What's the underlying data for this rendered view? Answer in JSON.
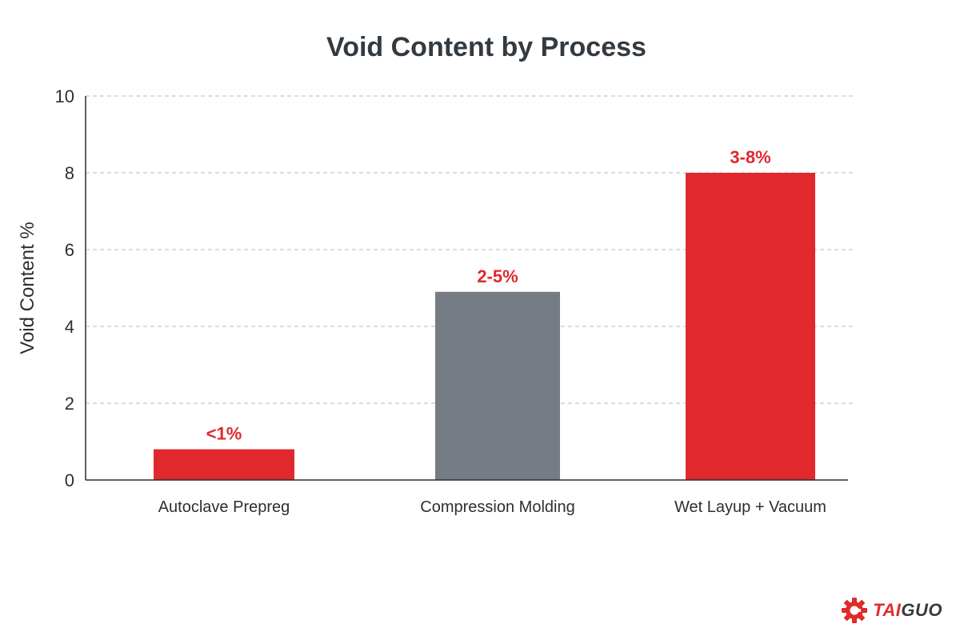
{
  "chart_data": {
    "type": "bar",
    "title": "Void Content by Process",
    "xlabel": "",
    "ylabel": "Void Content %",
    "ylim": [
      0,
      10
    ],
    "yticks": [
      0,
      2,
      4,
      6,
      8,
      10
    ],
    "grid": true,
    "categories": [
      "Autoclave Prepreg",
      "Compression Molding",
      "Wet Layup + Vacuum"
    ],
    "values": [
      0.8,
      4.9,
      8.0
    ],
    "data_labels": [
      "<1%",
      "2-5%",
      "3-8%"
    ],
    "bar_colors": [
      "#e0282d",
      "#767c83",
      "#e0282d"
    ],
    "data_label_color": "#e0282d"
  },
  "brand": {
    "logo_icon": "gear-icon",
    "name_part1": "TAI",
    "name_part2": "GUO",
    "accent_color": "#e02b2b"
  }
}
